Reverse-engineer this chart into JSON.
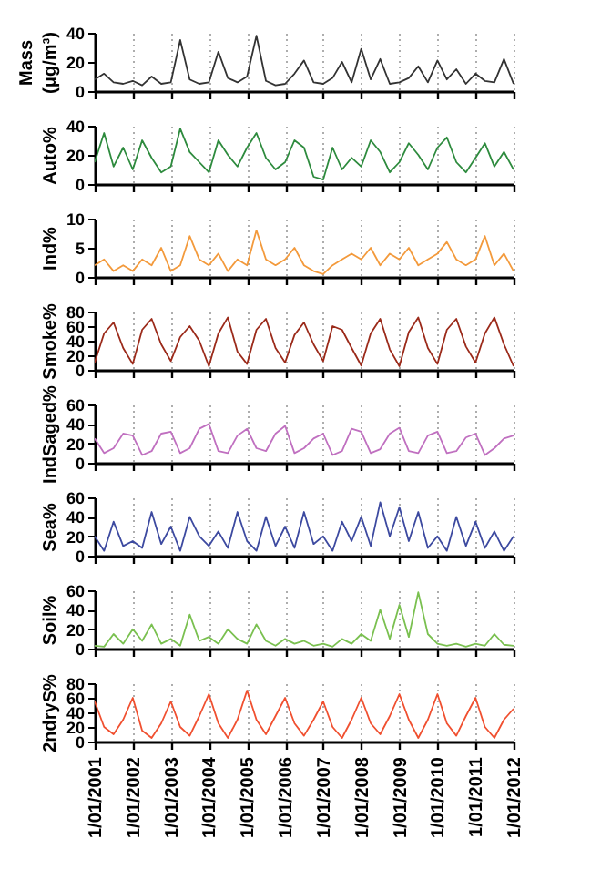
{
  "chart_data": [
    {
      "type": "line",
      "ylabel": "Mass (μg/m³)",
      "color": "#333333",
      "line_style": "solid",
      "grid": "x",
      "tick_labels": "y",
      "ylim": [
        0,
        40
      ],
      "yticks": [
        0,
        20,
        40
      ],
      "xlim": [
        "2001-01-01",
        "2012-01-01"
      ],
      "xticks": [
        {
          "value": "2001-01-01",
          "label": null
        },
        {
          "value": "2002-01-01",
          "label": null
        },
        {
          "value": "2003-01-01",
          "label": null
        },
        {
          "value": "2004-01-01",
          "label": null
        },
        {
          "value": "2005-01-01",
          "label": null
        },
        {
          "value": "2006-01-01",
          "label": null
        },
        {
          "value": "2007-01-01",
          "label": null
        },
        {
          "value": "2008-01-01",
          "label": null
        },
        {
          "value": "2009-01-01",
          "label": null
        },
        {
          "value": "2010-01-01",
          "label": null
        },
        {
          "value": "2011-01-01",
          "label": null
        },
        {
          "value": "2012-01-01",
          "label": null
        }
      ],
      "x": [
        "2001-01-01",
        "2001-04-01",
        "2001-07-01",
        "2001-10-01",
        "2002-01-01",
        "2002-04-01",
        "2002-07-01",
        "2002-10-01",
        "2003-01-01",
        "2003-04-01",
        "2003-07-01",
        "2003-10-01",
        "2004-01-01",
        "2004-04-01",
        "2004-07-01",
        "2004-10-01",
        "2005-01-01",
        "2005-04-01",
        "2005-07-01",
        "2005-10-01",
        "2006-01-01",
        "2006-04-01",
        "2006-07-01",
        "2006-10-01",
        "2007-01-01",
        "2007-04-01",
        "2007-07-01",
        "2007-10-01",
        "2008-01-01",
        "2008-04-01",
        "2008-07-01",
        "2008-10-01",
        "2009-01-01",
        "2009-04-01",
        "2009-07-01",
        "2009-10-01",
        "2010-01-01",
        "2010-04-01",
        "2010-07-01",
        "2010-10-01",
        "2011-01-01",
        "2011-04-01",
        "2011-07-01",
        "2011-10-01",
        "2012-01-01"
      ],
      "values": [
        8,
        12,
        6,
        5,
        7,
        4,
        10,
        5,
        6,
        35,
        8,
        5,
        6,
        27,
        9,
        6,
        10,
        38,
        7,
        4,
        5,
        12,
        21,
        6,
        5,
        9,
        20,
        6,
        29,
        8,
        22,
        5,
        6,
        9,
        17,
        6,
        21,
        8,
        15,
        5,
        12,
        7,
        6,
        22,
        5
      ]
    },
    {
      "type": "line",
      "ylabel": "Auto%",
      "color": "#2e8b3e",
      "line_style": "solid",
      "grid": "x",
      "tick_labels": "y",
      "ylim": [
        0,
        40
      ],
      "yticks": [
        0,
        20,
        40
      ],
      "xlim": [
        "2001-01-01",
        "2012-01-01"
      ],
      "xticks": [
        {
          "value": "2001-01-01",
          "label": null
        },
        {
          "value": "2002-01-01",
          "label": null
        },
        {
          "value": "2003-01-01",
          "label": null
        },
        {
          "value": "2004-01-01",
          "label": null
        },
        {
          "value": "2005-01-01",
          "label": null
        },
        {
          "value": "2006-01-01",
          "label": null
        },
        {
          "value": "2007-01-01",
          "label": null
        },
        {
          "value": "2008-01-01",
          "label": null
        },
        {
          "value": "2009-01-01",
          "label": null
        },
        {
          "value": "2010-01-01",
          "label": null
        },
        {
          "value": "2011-01-01",
          "label": null
        },
        {
          "value": "2012-01-01",
          "label": null
        }
      ],
      "x": [
        "2001-01-01",
        "2001-04-01",
        "2001-07-01",
        "2001-10-01",
        "2002-01-01",
        "2002-04-01",
        "2002-07-01",
        "2002-10-01",
        "2003-01-01",
        "2003-04-01",
        "2003-07-01",
        "2003-10-01",
        "2004-01-01",
        "2004-04-01",
        "2004-07-01",
        "2004-10-01",
        "2005-01-01",
        "2005-04-01",
        "2005-07-01",
        "2005-10-01",
        "2006-01-01",
        "2006-04-01",
        "2006-07-01",
        "2006-10-01",
        "2007-01-01",
        "2007-04-01",
        "2007-07-01",
        "2007-10-01",
        "2008-01-01",
        "2008-04-01",
        "2008-07-01",
        "2008-10-01",
        "2009-01-01",
        "2009-04-01",
        "2009-07-01",
        "2009-10-01",
        "2010-01-01",
        "2010-04-01",
        "2010-07-01",
        "2010-10-01",
        "2011-01-01",
        "2011-04-01",
        "2011-07-01",
        "2011-10-01",
        "2012-01-01"
      ],
      "values": [
        15,
        35,
        12,
        25,
        10,
        30,
        18,
        8,
        12,
        38,
        22,
        15,
        8,
        30,
        20,
        12,
        25,
        35,
        18,
        10,
        15,
        30,
        25,
        5,
        3,
        25,
        10,
        18,
        12,
        30,
        22,
        8,
        15,
        28,
        20,
        10,
        25,
        32,
        15,
        8,
        18,
        28,
        12,
        22,
        10
      ]
    },
    {
      "type": "line",
      "ylabel": "Ind%",
      "color": "#f39a3c",
      "line_style": "solid",
      "grid": "x",
      "tick_labels": "y",
      "ylim": [
        0,
        10
      ],
      "yticks": [
        0,
        5,
        10
      ],
      "xlim": [
        "2001-01-01",
        "2012-01-01"
      ],
      "xticks": [
        {
          "value": "2001-01-01",
          "label": null
        },
        {
          "value": "2002-01-01",
          "label": null
        },
        {
          "value": "2003-01-01",
          "label": null
        },
        {
          "value": "2004-01-01",
          "label": null
        },
        {
          "value": "2005-01-01",
          "label": null
        },
        {
          "value": "2006-01-01",
          "label": null
        },
        {
          "value": "2007-01-01",
          "label": null
        },
        {
          "value": "2008-01-01",
          "label": null
        },
        {
          "value": "2009-01-01",
          "label": null
        },
        {
          "value": "2010-01-01",
          "label": null
        },
        {
          "value": "2011-01-01",
          "label": null
        },
        {
          "value": "2012-01-01",
          "label": null
        }
      ],
      "x": [
        "2001-01-01",
        "2001-04-01",
        "2001-07-01",
        "2001-10-01",
        "2002-01-01",
        "2002-04-01",
        "2002-07-01",
        "2002-10-01",
        "2003-01-01",
        "2003-04-01",
        "2003-07-01",
        "2003-10-01",
        "2004-01-01",
        "2004-04-01",
        "2004-07-01",
        "2004-10-01",
        "2005-01-01",
        "2005-04-01",
        "2005-07-01",
        "2005-10-01",
        "2006-01-01",
        "2006-04-01",
        "2006-07-01",
        "2006-10-01",
        "2007-01-01",
        "2007-04-01",
        "2007-07-01",
        "2007-10-01",
        "2008-01-01",
        "2008-04-01",
        "2008-07-01",
        "2008-10-01",
        "2009-01-01",
        "2009-04-01",
        "2009-07-01",
        "2009-10-01",
        "2010-01-01",
        "2010-04-01",
        "2010-07-01",
        "2010-10-01",
        "2011-01-01",
        "2011-04-01",
        "2011-07-01",
        "2011-10-01",
        "2012-01-01"
      ],
      "values": [
        2,
        3,
        1,
        2,
        1,
        3,
        2,
        5,
        1,
        2,
        7,
        3,
        2,
        4,
        1,
        3,
        2,
        8,
        3,
        2,
        3,
        5,
        2,
        1,
        0.5,
        2,
        3,
        4,
        3,
        5,
        2,
        4,
        3,
        5,
        2,
        3,
        4,
        6,
        3,
        2,
        3,
        7,
        2,
        4,
        1
      ]
    },
    {
      "type": "line",
      "ylabel": "Smoke%",
      "color": "#9b2a1a",
      "line_style": "solid",
      "grid": "x",
      "tick_labels": "y",
      "ylim": [
        0,
        80
      ],
      "yticks": [
        0,
        20,
        40,
        60,
        80
      ],
      "xlim": [
        "2001-01-01",
        "2012-01-01"
      ],
      "xticks": [
        {
          "value": "2001-01-01",
          "label": null
        },
        {
          "value": "2002-01-01",
          "label": null
        },
        {
          "value": "2003-01-01",
          "label": null
        },
        {
          "value": "2004-01-01",
          "label": null
        },
        {
          "value": "2005-01-01",
          "label": null
        },
        {
          "value": "2006-01-01",
          "label": null
        },
        {
          "value": "2007-01-01",
          "label": null
        },
        {
          "value": "2008-01-01",
          "label": null
        },
        {
          "value": "2009-01-01",
          "label": null
        },
        {
          "value": "2010-01-01",
          "label": null
        },
        {
          "value": "2011-01-01",
          "label": null
        },
        {
          "value": "2012-01-01",
          "label": null
        }
      ],
      "x": [
        "2001-01-01",
        "2001-04-01",
        "2001-07-01",
        "2001-10-01",
        "2002-01-01",
        "2002-04-01",
        "2002-07-01",
        "2002-10-01",
        "2003-01-01",
        "2003-04-01",
        "2003-07-01",
        "2003-10-01",
        "2004-01-01",
        "2004-04-01",
        "2004-07-01",
        "2004-10-01",
        "2005-01-01",
        "2005-04-01",
        "2005-07-01",
        "2005-10-01",
        "2006-01-01",
        "2006-04-01",
        "2006-07-01",
        "2006-10-01",
        "2007-01-01",
        "2007-04-01",
        "2007-07-01",
        "2007-10-01",
        "2008-01-01",
        "2008-04-01",
        "2008-07-01",
        "2008-10-01",
        "2009-01-01",
        "2009-04-01",
        "2009-07-01",
        "2009-10-01",
        "2010-01-01",
        "2010-04-01",
        "2010-07-01",
        "2010-10-01",
        "2011-01-01",
        "2011-04-01",
        "2011-07-01",
        "2011-10-01",
        "2012-01-01"
      ],
      "values": [
        10,
        50,
        65,
        30,
        8,
        55,
        70,
        35,
        12,
        45,
        60,
        40,
        5,
        50,
        72,
        25,
        8,
        55,
        70,
        30,
        10,
        48,
        65,
        35,
        12,
        60,
        55,
        30,
        6,
        50,
        70,
        28,
        5,
        52,
        72,
        30,
        8,
        55,
        70,
        32,
        10,
        50,
        72,
        35,
        5
      ]
    },
    {
      "type": "line",
      "ylabel": "IndSaged%",
      "color": "#c070c0",
      "line_style": "solid",
      "grid": "x",
      "tick_labels": "y",
      "ylim": [
        0,
        60
      ],
      "yticks": [
        0,
        20,
        40,
        60
      ],
      "xlim": [
        "2001-01-01",
        "2012-01-01"
      ],
      "xticks": [
        {
          "value": "2001-01-01",
          "label": null
        },
        {
          "value": "2002-01-01",
          "label": null
        },
        {
          "value": "2003-01-01",
          "label": null
        },
        {
          "value": "2004-01-01",
          "label": null
        },
        {
          "value": "2005-01-01",
          "label": null
        },
        {
          "value": "2006-01-01",
          "label": null
        },
        {
          "value": "2007-01-01",
          "label": null
        },
        {
          "value": "2008-01-01",
          "label": null
        },
        {
          "value": "2009-01-01",
          "label": null
        },
        {
          "value": "2010-01-01",
          "label": null
        },
        {
          "value": "2011-01-01",
          "label": null
        },
        {
          "value": "2012-01-01",
          "label": null
        }
      ],
      "x": [
        "2001-01-01",
        "2001-04-01",
        "2001-07-01",
        "2001-10-01",
        "2002-01-01",
        "2002-04-01",
        "2002-07-01",
        "2002-10-01",
        "2003-01-01",
        "2003-04-01",
        "2003-07-01",
        "2003-10-01",
        "2004-01-01",
        "2004-04-01",
        "2004-07-01",
        "2004-10-01",
        "2005-01-01",
        "2005-04-01",
        "2005-07-01",
        "2005-10-01",
        "2006-01-01",
        "2006-04-01",
        "2006-07-01",
        "2006-10-01",
        "2007-01-01",
        "2007-04-01",
        "2007-07-01",
        "2007-10-01",
        "2008-01-01",
        "2008-04-01",
        "2008-07-01",
        "2008-10-01",
        "2009-01-01",
        "2009-04-01",
        "2009-07-01",
        "2009-10-01",
        "2010-01-01",
        "2010-04-01",
        "2010-07-01",
        "2010-10-01",
        "2011-01-01",
        "2011-04-01",
        "2011-07-01",
        "2011-10-01",
        "2012-01-01"
      ],
      "values": [
        25,
        10,
        15,
        30,
        28,
        8,
        12,
        30,
        32,
        10,
        15,
        35,
        40,
        12,
        10,
        28,
        35,
        15,
        12,
        30,
        38,
        10,
        15,
        25,
        30,
        8,
        12,
        35,
        32,
        10,
        14,
        30,
        36,
        12,
        10,
        28,
        32,
        10,
        12,
        26,
        30,
        8,
        15,
        25,
        28
      ]
    },
    {
      "type": "line",
      "ylabel": "Sea%",
      "color": "#3d4aa0",
      "line_style": "solid",
      "grid": "x",
      "tick_labels": "y",
      "ylim": [
        0,
        60
      ],
      "yticks": [
        0,
        20,
        40,
        60
      ],
      "xlim": [
        "2001-01-01",
        "2012-01-01"
      ],
      "xticks": [
        {
          "value": "2001-01-01",
          "label": null
        },
        {
          "value": "2002-01-01",
          "label": null
        },
        {
          "value": "2003-01-01",
          "label": null
        },
        {
          "value": "2004-01-01",
          "label": null
        },
        {
          "value": "2005-01-01",
          "label": null
        },
        {
          "value": "2006-01-01",
          "label": null
        },
        {
          "value": "2007-01-01",
          "label": null
        },
        {
          "value": "2008-01-01",
          "label": null
        },
        {
          "value": "2009-01-01",
          "label": null
        },
        {
          "value": "2010-01-01",
          "label": null
        },
        {
          "value": "2011-01-01",
          "label": null
        },
        {
          "value": "2012-01-01",
          "label": null
        }
      ],
      "x": [
        "2001-01-01",
        "2001-04-01",
        "2001-07-01",
        "2001-10-01",
        "2002-01-01",
        "2002-04-01",
        "2002-07-01",
        "2002-10-01",
        "2003-01-01",
        "2003-04-01",
        "2003-07-01",
        "2003-10-01",
        "2004-01-01",
        "2004-04-01",
        "2004-07-01",
        "2004-10-01",
        "2005-01-01",
        "2005-04-01",
        "2005-07-01",
        "2005-10-01",
        "2006-01-01",
        "2006-04-01",
        "2006-07-01",
        "2006-10-01",
        "2007-01-01",
        "2007-04-01",
        "2007-07-01",
        "2007-10-01",
        "2008-01-01",
        "2008-04-01",
        "2008-07-01",
        "2008-10-01",
        "2009-01-01",
        "2009-04-01",
        "2009-07-01",
        "2009-10-01",
        "2010-01-01",
        "2010-04-01",
        "2010-07-01",
        "2010-10-01",
        "2011-01-01",
        "2011-04-01",
        "2011-07-01",
        "2011-10-01",
        "2012-01-01"
      ],
      "values": [
        20,
        5,
        35,
        10,
        15,
        8,
        45,
        12,
        30,
        5,
        40,
        20,
        10,
        25,
        8,
        45,
        15,
        5,
        40,
        10,
        30,
        8,
        45,
        12,
        20,
        5,
        35,
        15,
        40,
        10,
        55,
        20,
        50,
        15,
        45,
        8,
        20,
        5,
        40,
        10,
        35,
        8,
        25,
        5,
        20
      ]
    },
    {
      "type": "line",
      "ylabel": "Soil%",
      "color": "#7ac050",
      "line_style": "solid",
      "grid": "x",
      "tick_labels": "y",
      "ylim": [
        0,
        60
      ],
      "yticks": [
        0,
        20,
        40,
        60
      ],
      "xlim": [
        "2001-01-01",
        "2012-01-01"
      ],
      "xticks": [
        {
          "value": "2001-01-01",
          "label": null
        },
        {
          "value": "2002-01-01",
          "label": null
        },
        {
          "value": "2003-01-01",
          "label": null
        },
        {
          "value": "2004-01-01",
          "label": null
        },
        {
          "value": "2005-01-01",
          "label": null
        },
        {
          "value": "2006-01-01",
          "label": null
        },
        {
          "value": "2007-01-01",
          "label": null
        },
        {
          "value": "2008-01-01",
          "label": null
        },
        {
          "value": "2009-01-01",
          "label": null
        },
        {
          "value": "2010-01-01",
          "label": null
        },
        {
          "value": "2011-01-01",
          "label": null
        },
        {
          "value": "2012-01-01",
          "label": null
        }
      ],
      "x": [
        "2001-01-01",
        "2001-04-01",
        "2001-07-01",
        "2001-10-01",
        "2002-01-01",
        "2002-04-01",
        "2002-07-01",
        "2002-10-01",
        "2003-01-01",
        "2003-04-01",
        "2003-07-01",
        "2003-10-01",
        "2004-01-01",
        "2004-04-01",
        "2004-07-01",
        "2004-10-01",
        "2005-01-01",
        "2005-04-01",
        "2005-07-01",
        "2005-10-01",
        "2006-01-01",
        "2006-04-01",
        "2006-07-01",
        "2006-10-01",
        "2007-01-01",
        "2007-04-01",
        "2007-07-01",
        "2007-10-01",
        "2008-01-01",
        "2008-04-01",
        "2008-07-01",
        "2008-10-01",
        "2009-01-01",
        "2009-04-01",
        "2009-07-01",
        "2009-10-01",
        "2010-01-01",
        "2010-04-01",
        "2010-07-01",
        "2010-10-01",
        "2011-01-01",
        "2011-04-01",
        "2011-07-01",
        "2011-10-01",
        "2012-01-01"
      ],
      "values": [
        3,
        2,
        15,
        5,
        20,
        8,
        25,
        5,
        10,
        3,
        35,
        8,
        12,
        5,
        20,
        10,
        5,
        25,
        8,
        3,
        10,
        5,
        8,
        3,
        5,
        2,
        10,
        5,
        15,
        8,
        40,
        10,
        45,
        12,
        58,
        15,
        5,
        3,
        5,
        2,
        5,
        3,
        15,
        4,
        3
      ]
    },
    {
      "type": "line",
      "ylabel": "2ndryS%",
      "color": "#f05030",
      "line_style": "solid",
      "grid": "x",
      "ylim": [
        0,
        80
      ],
      "yticks": [
        0,
        20,
        40,
        60,
        80
      ],
      "xlim": [
        "2001-01-01",
        "2012-01-01"
      ],
      "xticks": [
        {
          "value": "2001-01-01",
          "label": "1/01/2001"
        },
        {
          "value": "2002-01-01",
          "label": "1/01/2002"
        },
        {
          "value": "2003-01-01",
          "label": "1/01/2003"
        },
        {
          "value": "2004-01-01",
          "label": "1/01/2004"
        },
        {
          "value": "2005-01-01",
          "label": "1/01/2005"
        },
        {
          "value": "2006-01-01",
          "label": "1/01/2006"
        },
        {
          "value": "2007-01-01",
          "label": "1/01/2007"
        },
        {
          "value": "2008-01-01",
          "label": "1/01/2008"
        },
        {
          "value": "2009-01-01",
          "label": "1/01/2009"
        },
        {
          "value": "2010-01-01",
          "label": "1/01/2010"
        },
        {
          "value": "2011-01-01",
          "label": "1/01/2011"
        },
        {
          "value": "2012-01-01",
          "label": "1/01/2012"
        }
      ],
      "x": [
        "2001-01-01",
        "2001-04-01",
        "2001-07-01",
        "2001-10-01",
        "2002-01-01",
        "2002-04-01",
        "2002-07-01",
        "2002-10-01",
        "2003-01-01",
        "2003-04-01",
        "2003-07-01",
        "2003-10-01",
        "2004-01-01",
        "2004-04-01",
        "2004-07-01",
        "2004-10-01",
        "2005-01-01",
        "2005-04-01",
        "2005-07-01",
        "2005-10-01",
        "2006-01-01",
        "2006-04-01",
        "2006-07-01",
        "2006-10-01",
        "2007-01-01",
        "2007-04-01",
        "2007-07-01",
        "2007-10-01",
        "2008-01-01",
        "2008-04-01",
        "2008-07-01",
        "2008-10-01",
        "2009-01-01",
        "2009-04-01",
        "2009-07-01",
        "2009-10-01",
        "2010-01-01",
        "2010-04-01",
        "2010-07-01",
        "2010-10-01",
        "2011-01-01",
        "2011-04-01",
        "2011-07-01",
        "2011-10-01",
        "2012-01-01"
      ],
      "values": [
        55,
        20,
        10,
        30,
        60,
        15,
        5,
        25,
        55,
        20,
        8,
        35,
        65,
        25,
        5,
        30,
        70,
        30,
        10,
        35,
        60,
        25,
        8,
        30,
        55,
        20,
        5,
        30,
        60,
        25,
        10,
        35,
        65,
        30,
        5,
        30,
        65,
        25,
        8,
        35,
        60,
        20,
        5,
        30,
        45
      ]
    }
  ]
}
